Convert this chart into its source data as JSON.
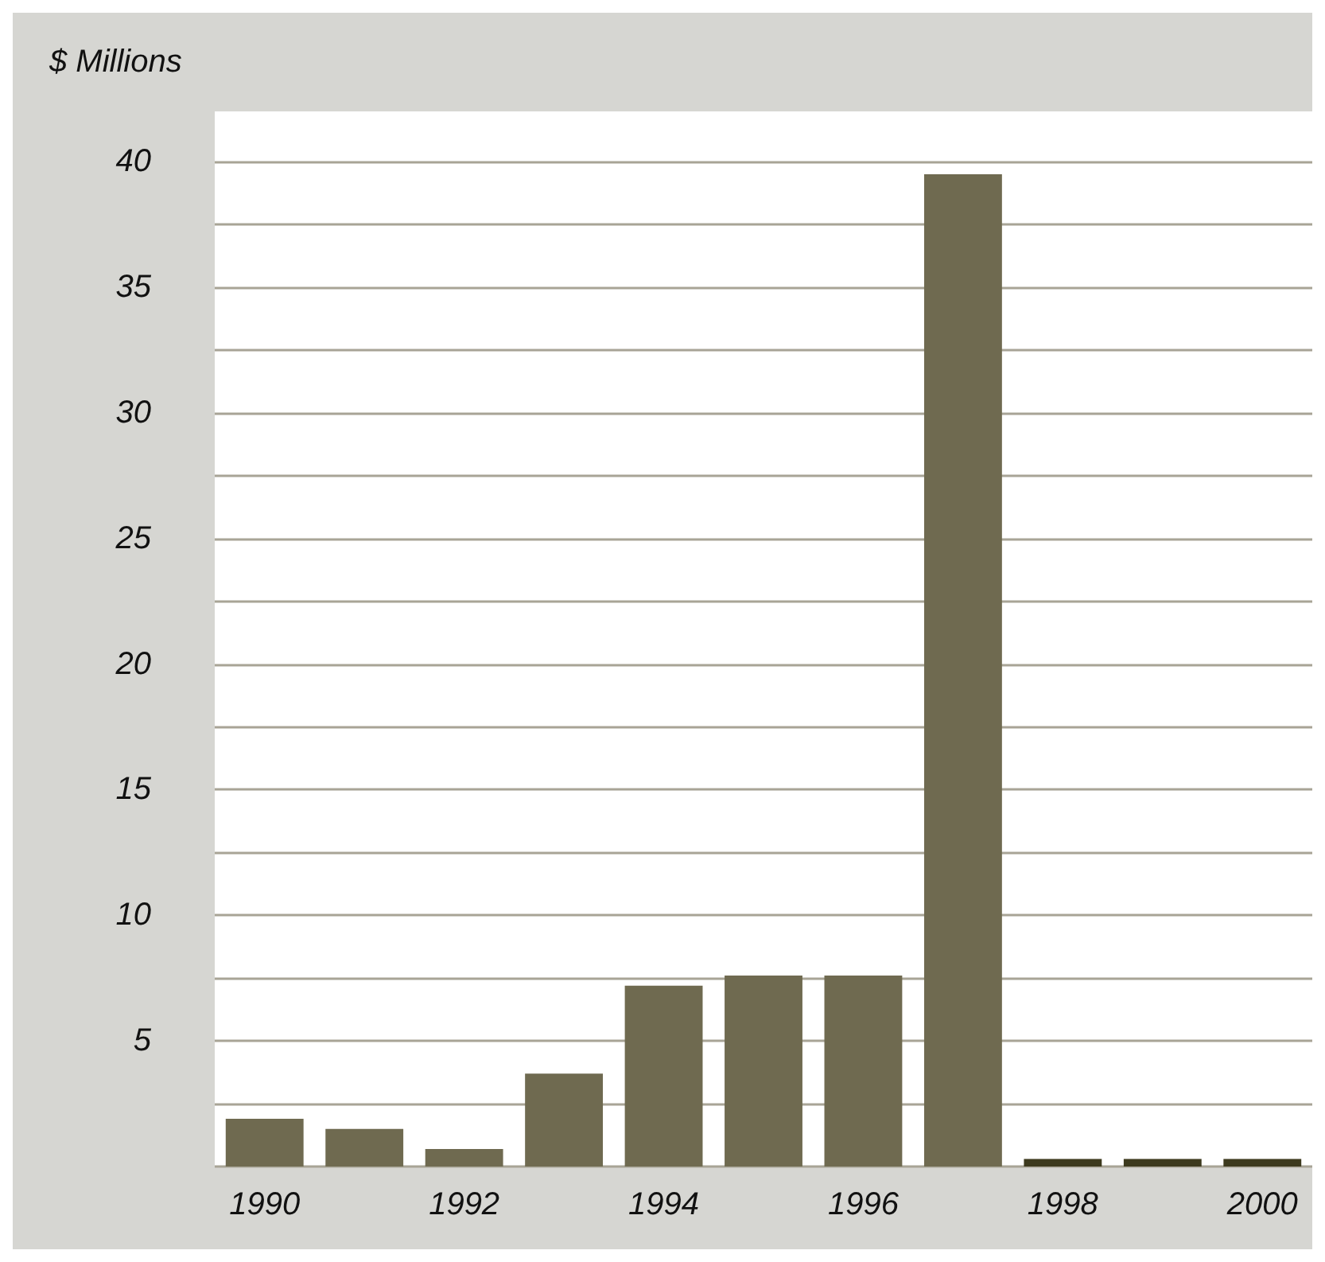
{
  "chart_data": {
    "type": "bar",
    "title": "$ Millions",
    "categories": [
      "1990",
      null,
      "1992",
      null,
      "1994",
      null,
      "1996",
      null,
      "1998",
      null,
      "2000"
    ],
    "values": [
      1.9,
      1.5,
      0.7,
      3.7,
      7.2,
      7.6,
      7.6,
      39.5,
      0.3,
      0.3,
      0.3
    ],
    "colors": [
      "#6f6a50",
      "#6f6a50",
      "#6f6a50",
      "#6f6a50",
      "#6f6a50",
      "#6f6a50",
      "#6f6a50",
      "#6f6a50",
      "#3d3a1e",
      "#3d3a1e",
      "#3d3a1e"
    ],
    "ylim": [
      0,
      42
    ],
    "yticks": [
      {
        "value": 0,
        "label": null
      },
      {
        "value": 2.5,
        "label": null
      },
      5,
      {
        "value": 7.5,
        "label": null
      },
      10,
      {
        "value": 12.5,
        "label": null
      },
      15,
      {
        "value": 17.5,
        "label": null
      },
      20,
      {
        "value": 22.5,
        "label": null
      },
      25,
      {
        "value": 27.5,
        "label": null
      },
      30,
      {
        "value": 32.5,
        "label": null
      },
      35,
      {
        "value": 37.5,
        "label": null
      },
      40
    ],
    "grid": "y"
  }
}
